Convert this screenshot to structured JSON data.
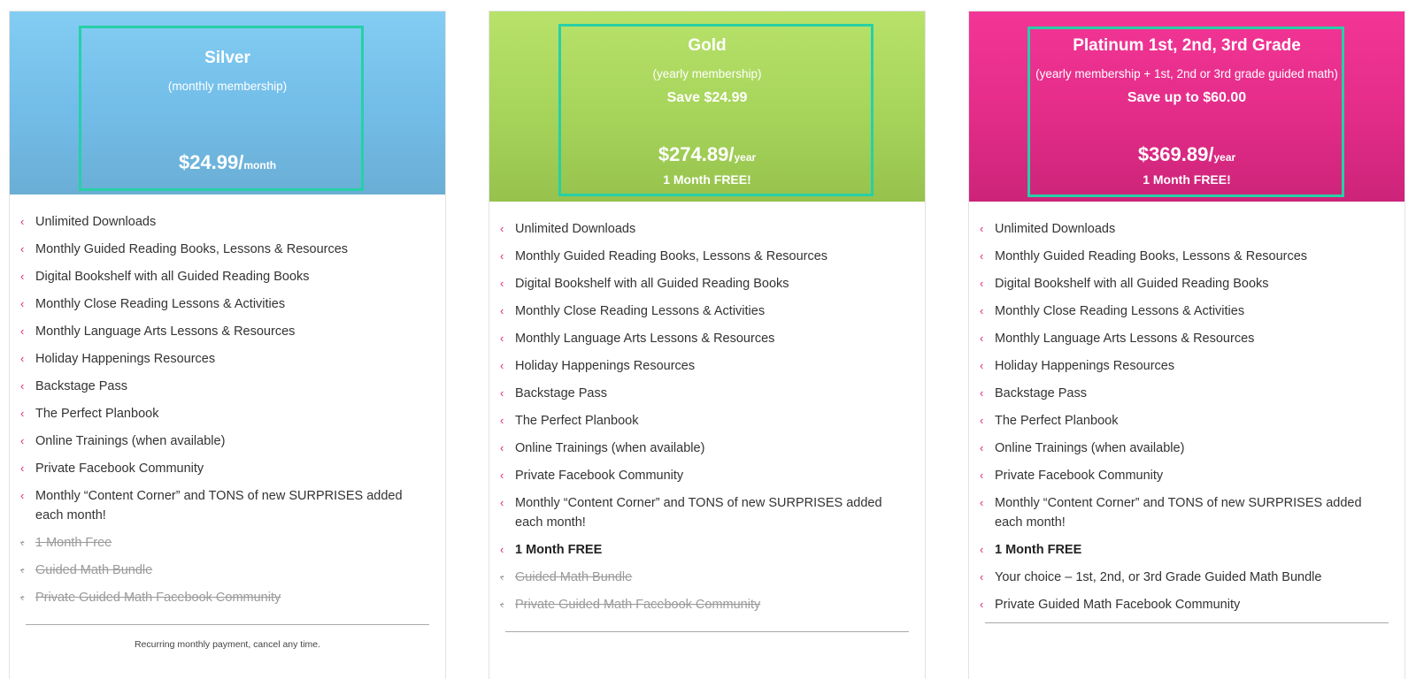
{
  "plans": [
    {
      "name": "Silver",
      "subtitle": "(monthly membership)",
      "price": "$24.99/",
      "period": "month",
      "features": [
        {
          "text": "Unlimited Downloads",
          "state": "normal"
        },
        {
          "text": "Monthly Guided Reading Books, Lessons & Resources",
          "state": "normal"
        },
        {
          "text": "Digital Bookshelf with all Guided Reading Books",
          "state": "normal"
        },
        {
          "text": "Monthly Close Reading Lessons & Activities",
          "state": "normal"
        },
        {
          "text": "Monthly Language Arts Lessons & Resources",
          "state": "normal"
        },
        {
          "text": "Holiday Happenings Resources",
          "state": "normal"
        },
        {
          "text": "Backstage Pass",
          "state": "normal"
        },
        {
          "text": "The Perfect Planbook",
          "state": "normal"
        },
        {
          "text": "Online Trainings (when available)",
          "state": "normal"
        },
        {
          "text": "Private Facebook Community",
          "state": "normal"
        },
        {
          "text": "Monthly “Content Corner” and TONS of new SURPRISES added each month!",
          "state": "normal"
        },
        {
          "text": "1 Month Free",
          "state": "off"
        },
        {
          "text": "Guided Math Bundle",
          "state": "off"
        },
        {
          "text": "Private Guided Math Facebook Community",
          "state": "off"
        }
      ],
      "footnote": "Recurring monthly payment, cancel any time."
    },
    {
      "name": "Gold",
      "subtitle": "(yearly membership)",
      "save": "Save $24.99",
      "price": "$274.89/",
      "period": "year",
      "bonus": "1 Month FREE!",
      "features": [
        {
          "text": "Unlimited Downloads",
          "state": "normal"
        },
        {
          "text": "Monthly Guided Reading Books, Lessons & Resources",
          "state": "normal"
        },
        {
          "text": "Digital Bookshelf with all Guided Reading Books",
          "state": "normal"
        },
        {
          "text": "Monthly Close Reading Lessons & Activities",
          "state": "normal"
        },
        {
          "text": "Monthly Language Arts Lessons & Resources",
          "state": "normal"
        },
        {
          "text": "Holiday Happenings Resources",
          "state": "normal"
        },
        {
          "text": "Backstage Pass",
          "state": "normal"
        },
        {
          "text": "The Perfect Planbook",
          "state": "normal"
        },
        {
          "text": "Online Trainings (when available)",
          "state": "normal"
        },
        {
          "text": "Private Facebook Community",
          "state": "normal"
        },
        {
          "text": "Monthly “Content Corner” and TONS of new SURPRISES added each month!",
          "state": "normal"
        },
        {
          "text": "1 Month FREE",
          "state": "bold"
        },
        {
          "text": "Guided Math Bundle",
          "state": "off"
        },
        {
          "text": "Private Guided Math Facebook Community",
          "state": "off"
        }
      ]
    },
    {
      "name": "Platinum 1st, 2nd, 3rd Grade",
      "subtitle": "(yearly membership + 1st, 2nd or 3rd grade guided math)",
      "save": "Save up to $60.00",
      "price": "$369.89/",
      "period": "year",
      "bonus": "1 Month FREE!",
      "features": [
        {
          "text": "Unlimited Downloads",
          "state": "normal"
        },
        {
          "text": "Monthly Guided Reading Books, Lessons & Resources",
          "state": "normal"
        },
        {
          "text": "Digital Bookshelf with all Guided Reading Books",
          "state": "normal"
        },
        {
          "text": "Monthly Close Reading Lessons & Activities",
          "state": "normal"
        },
        {
          "text": "Monthly Language Arts Lessons & Resources",
          "state": "normal"
        },
        {
          "text": "Holiday Happenings Resources",
          "state": "normal"
        },
        {
          "text": "Backstage Pass",
          "state": "normal"
        },
        {
          "text": "The Perfect Planbook",
          "state": "normal"
        },
        {
          "text": "Online Trainings (when available)",
          "state": "normal"
        },
        {
          "text": "Private Facebook Community",
          "state": "normal"
        },
        {
          "text": "Monthly “Content Corner” and TONS of new SURPRISES added each month!",
          "state": "normal"
        },
        {
          "text": "1 Month FREE",
          "state": "bold"
        },
        {
          "text": "Your choice – 1st, 2nd, or 3rd Grade Guided Math Bundle",
          "state": "normal"
        },
        {
          "text": "Private Guided Math Facebook Community",
          "state": "normal"
        }
      ]
    }
  ],
  "icons": {
    "bullet": "chevron-left-icon",
    "bullet_color": "#e0287f"
  },
  "colors": {
    "silver_header": "#75c2ec",
    "gold_header": "#a8d55c",
    "platinum_header": "#e42d89",
    "frame_border": "#26d0a6"
  }
}
